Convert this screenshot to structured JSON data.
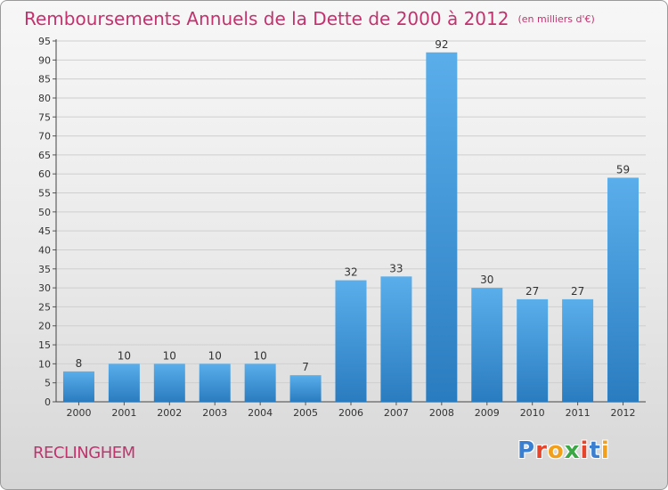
{
  "header": {
    "title": "Remboursements Annuels de la Dette de 2000 à 2012",
    "unit": "(en milliers d'€)"
  },
  "footer": {
    "town": "RECLINGHEM",
    "logo_letters": [
      "P",
      "r",
      "o",
      "x",
      "i",
      "t",
      "i"
    ],
    "logo_colors": [
      "#3b7fd1",
      "#e7452b",
      "#f2a01c",
      "#3aa844",
      "#e7452b",
      "#3b7fd1",
      "#f2a01c"
    ]
  },
  "chart_data": {
    "type": "bar",
    "categories": [
      "2000",
      "2001",
      "2002",
      "2003",
      "2004",
      "2005",
      "2006",
      "2007",
      "2008",
      "2009",
      "2010",
      "2011",
      "2012"
    ],
    "values": [
      8,
      10,
      10,
      10,
      10,
      7,
      32,
      33,
      92,
      30,
      27,
      27,
      59
    ],
    "data_labels": [
      "8",
      "10",
      "10",
      "10",
      "10",
      "7",
      "32",
      "33",
      "92",
      "30",
      "27",
      "27",
      "59"
    ],
    "y_ticks": [
      0,
      5,
      10,
      15,
      20,
      25,
      30,
      35,
      40,
      45,
      50,
      55,
      60,
      65,
      70,
      75,
      80,
      85,
      90,
      95
    ],
    "ylim": [
      0,
      95
    ],
    "grid": true,
    "bar_color": "#3b97dc",
    "title": "Remboursements Annuels de la Dette de 2000 à 2012",
    "xlabel": "",
    "ylabel": ""
  }
}
